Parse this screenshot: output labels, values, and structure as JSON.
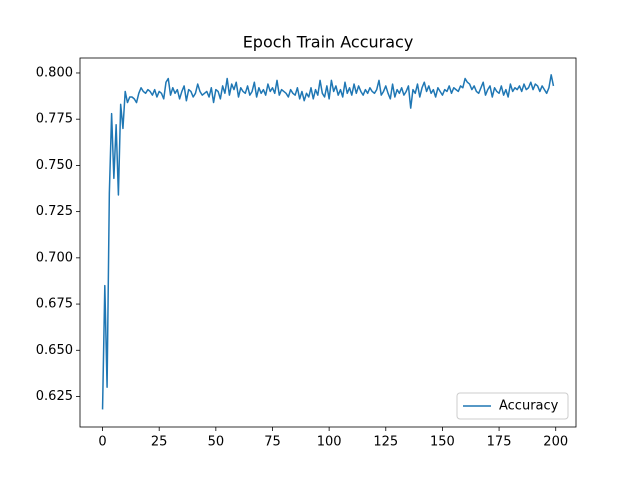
{
  "chart_data": {
    "type": "line",
    "title": "Epoch Train Accuracy",
    "x": [
      0,
      1,
      2,
      3,
      4,
      5,
      6,
      7,
      8,
      9,
      10,
      11,
      12,
      13,
      14,
      15,
      16,
      17,
      18,
      19,
      20,
      21,
      22,
      23,
      24,
      25,
      26,
      27,
      28,
      29,
      30,
      31,
      32,
      33,
      34,
      35,
      36,
      37,
      38,
      39,
      40,
      41,
      42,
      43,
      44,
      45,
      46,
      47,
      48,
      49,
      50,
      51,
      52,
      53,
      54,
      55,
      56,
      57,
      58,
      59,
      60,
      61,
      62,
      63,
      64,
      65,
      66,
      67,
      68,
      69,
      70,
      71,
      72,
      73,
      74,
      75,
      76,
      77,
      78,
      79,
      80,
      81,
      82,
      83,
      84,
      85,
      86,
      87,
      88,
      89,
      90,
      91,
      92,
      93,
      94,
      95,
      96,
      97,
      98,
      99,
      100,
      101,
      102,
      103,
      104,
      105,
      106,
      107,
      108,
      109,
      110,
      111,
      112,
      113,
      114,
      115,
      116,
      117,
      118,
      119,
      120,
      121,
      122,
      123,
      124,
      125,
      126,
      127,
      128,
      129,
      130,
      131,
      132,
      133,
      134,
      135,
      136,
      137,
      138,
      139,
      140,
      141,
      142,
      143,
      144,
      145,
      146,
      147,
      148,
      149,
      150,
      151,
      152,
      153,
      154,
      155,
      156,
      157,
      158,
      159,
      160,
      161,
      162,
      163,
      164,
      165,
      166,
      167,
      168,
      169,
      170,
      171,
      172,
      173,
      174,
      175,
      176,
      177,
      178,
      179,
      180,
      181,
      182,
      183,
      184,
      185,
      186,
      187,
      188,
      189,
      190,
      191,
      192,
      193,
      194,
      195,
      196,
      197,
      198,
      199
    ],
    "series": [
      {
        "name": "Accuracy",
        "color": "#1f77b4",
        "values": [
          0.618,
          0.685,
          0.63,
          0.735,
          0.778,
          0.743,
          0.772,
          0.734,
          0.783,
          0.77,
          0.79,
          0.784,
          0.787,
          0.787,
          0.786,
          0.784,
          0.789,
          0.792,
          0.79,
          0.789,
          0.791,
          0.79,
          0.788,
          0.791,
          0.787,
          0.79,
          0.789,
          0.786,
          0.795,
          0.797,
          0.788,
          0.792,
          0.789,
          0.791,
          0.786,
          0.79,
          0.793,
          0.785,
          0.791,
          0.79,
          0.787,
          0.789,
          0.794,
          0.79,
          0.788,
          0.789,
          0.79,
          0.787,
          0.792,
          0.784,
          0.791,
          0.79,
          0.786,
          0.793,
          0.789,
          0.797,
          0.788,
          0.794,
          0.791,
          0.795,
          0.787,
          0.792,
          0.79,
          0.789,
          0.793,
          0.788,
          0.79,
          0.795,
          0.787,
          0.792,
          0.789,
          0.791,
          0.788,
          0.794,
          0.79,
          0.792,
          0.789,
          0.796,
          0.788,
          0.791,
          0.79,
          0.789,
          0.787,
          0.791,
          0.789,
          0.788,
          0.792,
          0.786,
          0.79,
          0.785,
          0.789,
          0.787,
          0.792,
          0.786,
          0.791,
          0.788,
          0.796,
          0.789,
          0.787,
          0.793,
          0.786,
          0.796,
          0.79,
          0.793,
          0.788,
          0.791,
          0.787,
          0.795,
          0.789,
          0.792,
          0.788,
          0.794,
          0.789,
          0.793,
          0.79,
          0.788,
          0.791,
          0.789,
          0.792,
          0.79,
          0.789,
          0.791,
          0.796,
          0.788,
          0.79,
          0.793,
          0.789,
          0.786,
          0.794,
          0.787,
          0.791,
          0.789,
          0.792,
          0.788,
          0.79,
          0.793,
          0.781,
          0.791,
          0.789,
          0.794,
          0.787,
          0.792,
          0.795,
          0.79,
          0.793,
          0.789,
          0.791,
          0.787,
          0.792,
          0.79,
          0.788,
          0.791,
          0.79,
          0.793,
          0.789,
          0.792,
          0.791,
          0.79,
          0.793,
          0.792,
          0.797,
          0.795,
          0.794,
          0.791,
          0.793,
          0.79,
          0.789,
          0.792,
          0.795,
          0.788,
          0.791,
          0.793,
          0.787,
          0.792,
          0.79,
          0.789,
          0.793,
          0.788,
          0.791,
          0.787,
          0.794,
          0.79,
          0.792,
          0.791,
          0.793,
          0.79,
          0.794,
          0.791,
          0.792,
          0.795,
          0.791,
          0.794,
          0.793,
          0.79,
          0.793,
          0.791,
          0.789,
          0.792,
          0.799,
          0.793
        ]
      }
    ],
    "xlim": [
      -9.95,
      208.95
    ],
    "xticks": [
      0,
      25,
      50,
      75,
      100,
      125,
      150,
      175,
      200
    ],
    "ylim": [
      0.6085,
      0.8081
    ],
    "yticks": [
      0.625,
      {
        "value": 0.65,
        "label": "0.650"
      },
      0.675,
      {
        "value": 0.7,
        "label": "0.700"
      },
      0.725,
      {
        "value": 0.75,
        "label": "0.750"
      },
      0.775,
      {
        "value": 0.8,
        "label": "0.800"
      }
    ],
    "grid": false,
    "legend": "lower right"
  }
}
